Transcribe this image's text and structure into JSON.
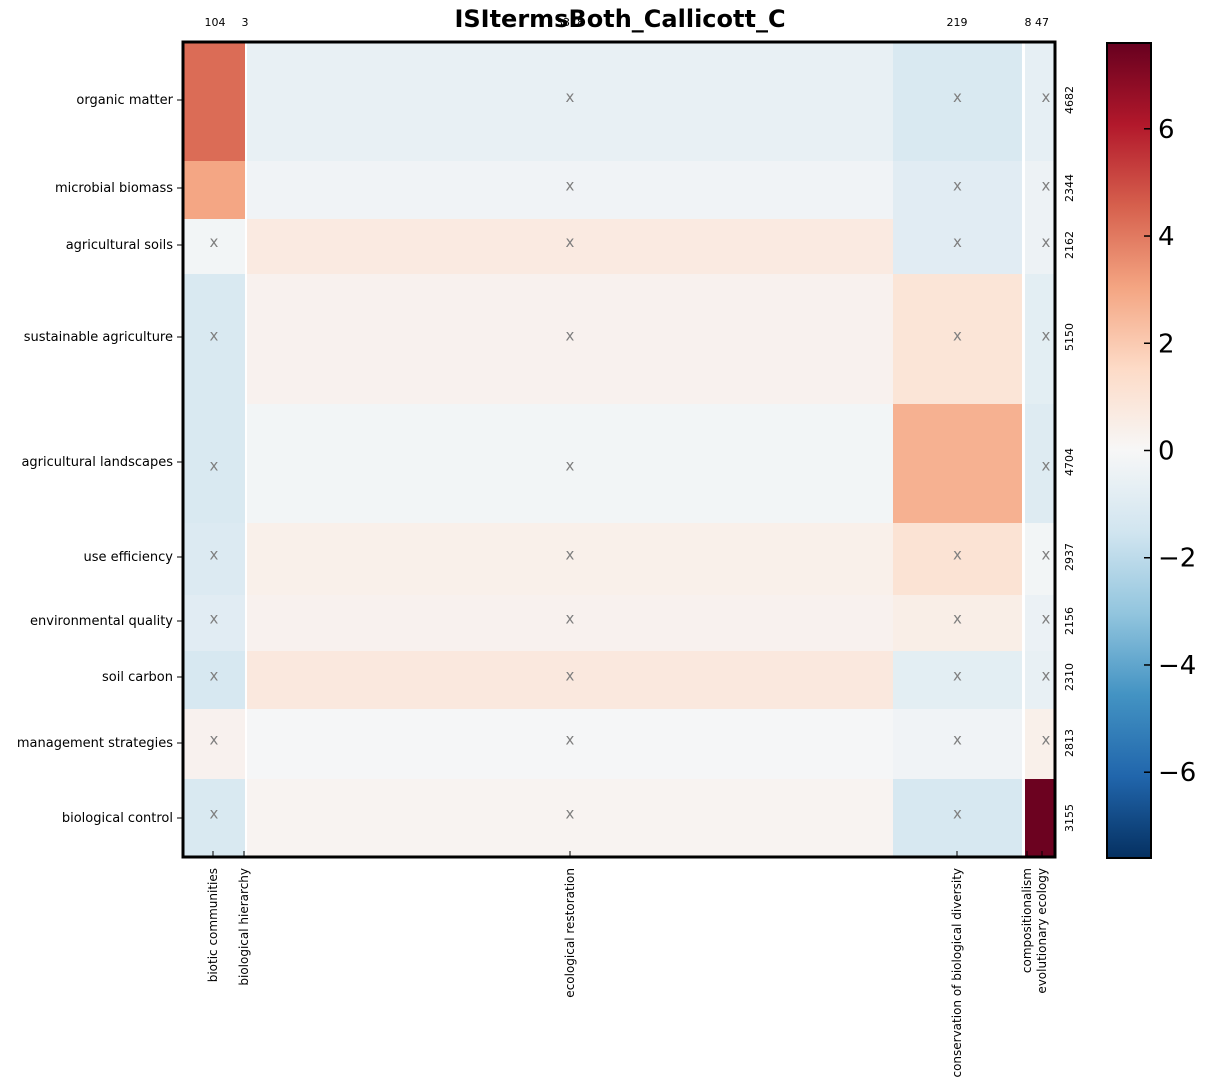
{
  "chart_data": {
    "type": "heatmap",
    "title": "ISItermsBoth_Callicott_C",
    "columns": [
      {
        "label": "biotic communities",
        "count": "104"
      },
      {
        "label": "biological hierarchy",
        "count": "3"
      },
      {
        "label": "ecological restoration",
        "count": "3378"
      },
      {
        "label": "conservation of biological diversity",
        "count": "219"
      },
      {
        "label": "compositionalism",
        "count": "8"
      },
      {
        "label": "evolutionary ecology",
        "count": "47"
      }
    ],
    "rows": [
      {
        "label": "organic matter",
        "count": "4682"
      },
      {
        "label": "microbial biomass",
        "count": "2344"
      },
      {
        "label": "agricultural soils",
        "count": "2162"
      },
      {
        "label": "sustainable agriculture",
        "count": "5150"
      },
      {
        "label": "agricultural landscapes",
        "count": "4704"
      },
      {
        "label": "use efficiency",
        "count": "2937"
      },
      {
        "label": "environmental quality",
        "count": "2156"
      },
      {
        "label": "soil carbon",
        "count": "2310"
      },
      {
        "label": "management strategies",
        "count": "2813"
      },
      {
        "label": "biological control",
        "count": "3155"
      }
    ],
    "values": [
      [
        4.3,
        0.0,
        -0.6,
        -1.2,
        0.0,
        -0.7
      ],
      [
        3.0,
        0.0,
        -0.3,
        -0.9,
        0.0,
        -0.4
      ],
      [
        -0.2,
        0.0,
        0.7,
        -0.9,
        0.0,
        -0.4
      ],
      [
        -1.2,
        0.0,
        0.3,
        1.0,
        0.0,
        -0.8
      ],
      [
        -1.2,
        0.0,
        -0.2,
        2.7,
        0.0,
        -1.0
      ],
      [
        -1.1,
        0.0,
        0.4,
        1.1,
        0.0,
        -0.2
      ],
      [
        -0.9,
        0.0,
        0.3,
        0.5,
        0.0,
        -0.5
      ],
      [
        -1.3,
        0.0,
        0.8,
        -0.8,
        0.0,
        -0.6
      ],
      [
        0.3,
        0.0,
        -0.1,
        -0.3,
        0.0,
        0.4
      ],
      [
        -1.2,
        0.0,
        0.2,
        -1.3,
        0.0,
        7.5
      ]
    ],
    "marked": [
      [
        false,
        false,
        true,
        true,
        false,
        true
      ],
      [
        false,
        false,
        true,
        true,
        false,
        true
      ],
      [
        true,
        false,
        true,
        true,
        false,
        true
      ],
      [
        true,
        false,
        true,
        true,
        false,
        true
      ],
      [
        true,
        false,
        true,
        false,
        false,
        true
      ],
      [
        true,
        false,
        true,
        true,
        false,
        true
      ],
      [
        true,
        false,
        true,
        true,
        false,
        true
      ],
      [
        true,
        false,
        true,
        true,
        false,
        true
      ],
      [
        true,
        false,
        true,
        true,
        false,
        true
      ],
      [
        true,
        false,
        true,
        true,
        false,
        false
      ]
    ],
    "mark_symbol": "x",
    "colorbar": {
      "range": [
        -7.6,
        7.6
      ],
      "ticks": [
        6,
        4,
        2,
        0,
        -2,
        -4,
        -6
      ],
      "tick_labels": [
        "6",
        "4",
        "2",
        "0",
        "−2",
        "−4",
        "−6"
      ],
      "colormap": "RdBu_r",
      "placement": "right"
    }
  }
}
